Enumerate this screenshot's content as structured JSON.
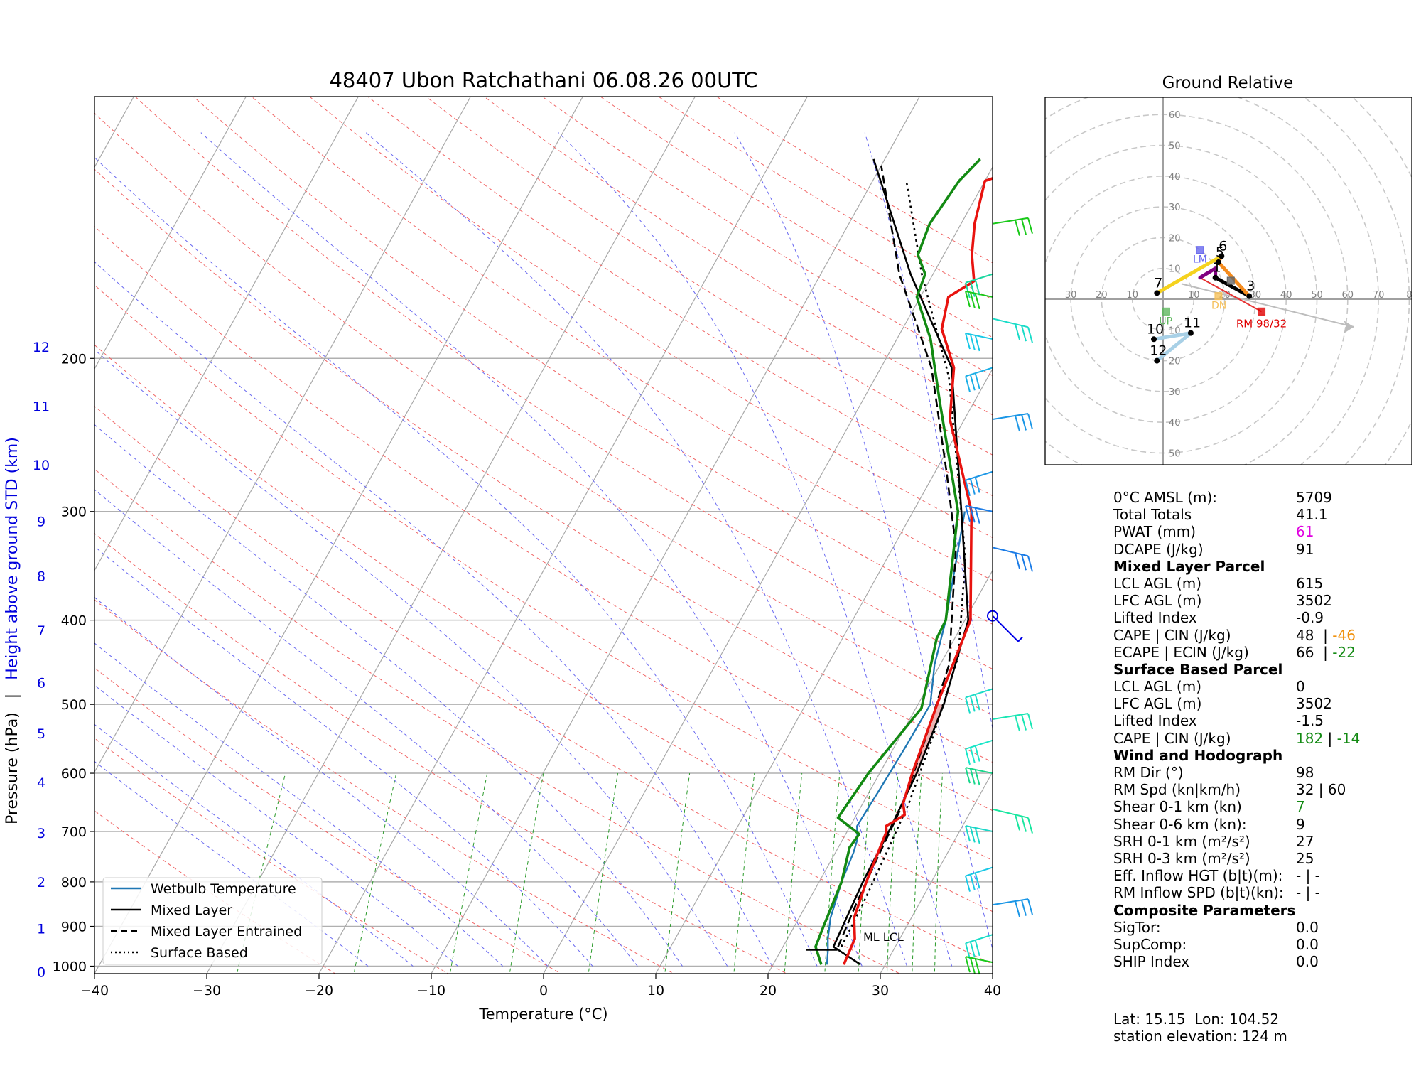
{
  "chart_data": [
    {
      "type": "line",
      "title": "48407 Ubon Ratchathani 06.08.26 00UTC",
      "xlabel": "Temperature (°C)",
      "ylabel": "Pressure (hPa)",
      "y2label": "Height above ground STD (km)",
      "ylabel_sep": "|",
      "xlim": [
        -40,
        40
      ],
      "ylim": [
        1020,
        100
      ],
      "y_scale": "log",
      "skew": "skew-T",
      "x_ticks": [
        "−40",
        "−30",
        "−20",
        "−10",
        "0",
        "10",
        "20",
        "30",
        "40"
      ],
      "y_ticks": [
        {
          "p": 1000,
          "label": "1000"
        },
        {
          "p": 900,
          "label": "900"
        },
        {
          "p": 800,
          "label": "800"
        },
        {
          "p": 700,
          "label": "700"
        },
        {
          "p": 600,
          "label": "600"
        },
        {
          "p": 500,
          "label": "500"
        },
        {
          "p": 400,
          "label": "400"
        },
        {
          "p": 300,
          "label": "300"
        },
        {
          "p": 200,
          "label": "200"
        }
      ],
      "height_ticks": [
        {
          "label": "0",
          "p": 1015
        },
        {
          "label": "1",
          "p": 905
        },
        {
          "label": "2",
          "p": 800
        },
        {
          "label": "3",
          "p": 703
        },
        {
          "label": "4",
          "p": 615
        },
        {
          "label": "5",
          "p": 540
        },
        {
          "label": "6",
          "p": 472
        },
        {
          "label": "7",
          "p": 411
        },
        {
          "label": "8",
          "p": 356
        },
        {
          "label": "9",
          "p": 308
        },
        {
          "label": "10",
          "p": 265
        },
        {
          "label": "11",
          "p": 227
        },
        {
          "label": "12",
          "p": 194
        }
      ],
      "series": [
        {
          "name": "Wetbulb Temperature",
          "color": "#1f77b4",
          "points": [
            [
              24.8,
              996
            ],
            [
              24.2,
              960
            ],
            [
              23.6,
              930
            ],
            [
              22.8,
              880
            ],
            [
              22,
              800
            ],
            [
              21.6,
              740
            ],
            [
              21.3,
              715
            ],
            [
              20.6,
              690
            ],
            [
              20.8,
              630
            ],
            [
              21,
              560
            ],
            [
              21.1,
              500
            ],
            [
              19.5,
              450
            ],
            [
              18.3,
              400
            ],
            [
              14.6,
              300
            ]
          ]
        },
        {
          "name": "Mixed Layer",
          "color": "#000000",
          "dash": "",
          "points": [
            [
              27.8,
              996
            ],
            [
              24.5,
              950
            ],
            [
              24.3,
              900
            ],
            [
              23.9,
              800
            ],
            [
              23.7,
              700
            ],
            [
              23.3,
              600
            ],
            [
              22.3,
              500
            ],
            [
              20.3,
              400
            ],
            [
              14.3,
              300
            ],
            [
              6.3,
              205
            ],
            [
              -2,
              160
            ],
            [
              -11,
              118
            ]
          ]
        },
        {
          "name": "Mixed Layer Entrained",
          "color": "#000000",
          "dash": "12,6",
          "points": [
            [
              24.9,
              950
            ],
            [
              24.4,
              850
            ],
            [
              24,
              750
            ],
            [
              23.6,
              650
            ],
            [
              22.4,
              550
            ],
            [
              20.8,
              450
            ],
            [
              15.6,
              330
            ],
            [
              11,
              270
            ],
            [
              4.5,
              205
            ],
            [
              -3,
              160
            ],
            [
              -10,
              120
            ]
          ]
        },
        {
          "name": "Surface Based",
          "color": "#000000",
          "dash": "3,5",
          "points": [
            [
              25.2,
              950
            ],
            [
              25,
              850
            ],
            [
              24.6,
              750
            ],
            [
              24.1,
              650
            ],
            [
              23,
              550
            ],
            [
              21.2,
              440
            ],
            [
              17,
              340
            ],
            [
              12,
              270
            ],
            [
              6.5,
              210
            ],
            [
              -1,
              160
            ],
            [
              -7,
              125
            ]
          ]
        }
      ],
      "profile_temperature": {
        "color": "#e8130f",
        "points": [
          [
            26.3,
            996
          ],
          [
            26,
            930
          ],
          [
            24.9,
            880
          ],
          [
            24.2,
            800
          ],
          [
            23.5,
            700
          ],
          [
            23.2,
            690
          ],
          [
            24.3,
            670
          ],
          [
            23.6,
            650
          ],
          [
            22.9,
            600
          ],
          [
            21.7,
            500
          ],
          [
            20.5,
            400
          ],
          [
            15.2,
            300
          ],
          [
            8.7,
            235
          ],
          [
            6.5,
            205
          ],
          [
            3.5,
            185
          ],
          [
            2.5,
            170
          ],
          [
            4,
            163
          ],
          [
            2.5,
            152
          ],
          [
            1.2,
            140
          ],
          [
            0,
            125
          ],
          [
            3.2,
            120
          ]
        ]
      },
      "profile_dewpoint": {
        "color": "#138a13",
        "points": [
          [
            24.3,
            996
          ],
          [
            22.9,
            950
          ],
          [
            22.6,
            900
          ],
          [
            22,
            800
          ],
          [
            21,
            730
          ],
          [
            21.2,
            705
          ],
          [
            18.5,
            675
          ],
          [
            19,
            600
          ],
          [
            20.5,
            505
          ],
          [
            18.4,
            420
          ],
          [
            18.3,
            400
          ],
          [
            14,
            300
          ],
          [
            7,
            225
          ],
          [
            3,
            190
          ],
          [
            -0.3,
            170
          ],
          [
            -0.7,
            160
          ],
          [
            -2.3,
            152
          ],
          [
            -2.8,
            140
          ],
          [
            -2.3,
            125
          ],
          [
            -1.5,
            118
          ]
        ]
      },
      "cape_shading_color": "#e8a5a5",
      "wind_barbs_side": "right",
      "lcl_label": "ML LCL",
      "legend_position": "bottom-left",
      "grid": true
    },
    {
      "type": "scatter",
      "title": "Ground Relative",
      "radial_ticks": [
        "60",
        "50",
        "40",
        "30",
        "20",
        "10",
        "10",
        "20",
        "30",
        "40",
        "50"
      ],
      "horizontal_ticks": [
        "30",
        "20",
        "10",
        "10",
        "20",
        "30",
        "40",
        "50",
        "60",
        "70",
        "8"
      ],
      "points": [
        {
          "label": "1",
          "x": 17,
          "y": 7
        },
        {
          "label": "3",
          "x": 28,
          "y": 1
        },
        {
          "label": "5",
          "x": 18,
          "y": 12
        },
        {
          "label": "6",
          "x": 19,
          "y": 14
        },
        {
          "label": "7",
          "x": -2,
          "y": 2
        },
        {
          "label": "10",
          "x": -3,
          "y": -13
        },
        {
          "label": "11",
          "x": 9,
          "y": -11
        },
        {
          "label": "12",
          "x": -2,
          "y": -20
        }
      ],
      "markers": [
        {
          "label": "LM",
          "x": 12,
          "y": 16,
          "color": "#6666ee"
        },
        {
          "label": "DN",
          "x": 18,
          "y": 1,
          "color": "#f5c05a"
        },
        {
          "label": "UP",
          "x": 1,
          "y": -4,
          "color": "#5fb85f"
        },
        {
          "label": "",
          "x": 22,
          "y": 6,
          "color": "#666666"
        },
        {
          "label": "RM 98/32",
          "x": 32,
          "y": -4,
          "color": "#e00000"
        }
      ]
    }
  ],
  "params": {
    "rows": [
      {
        "label": "0°C AMSL (m):",
        "value": "5709",
        "color": "#000000"
      },
      {
        "label": "Total Totals",
        "value": "41.1",
        "color": "#000000"
      },
      {
        "label": "PWAT (mm)",
        "value": "61",
        "color": "#e000e0"
      },
      {
        "label": "DCAPE (J/kg)",
        "value": "91",
        "color": "#000000"
      }
    ],
    "ml_header": "Mixed Layer Parcel",
    "ml": {
      "lcl_label": "LCL AGL (m)",
      "lcl": "615",
      "lfc_label": "LFC AGL (m)",
      "lfc": "3502",
      "li_label": "Lifted Index",
      "li": "-0.9",
      "cape_label": "CAPE | CIN (J/kg)",
      "cape": "48",
      "sep": "|",
      "cin": "-46",
      "ecape_label": "ECAPE | ECIN (J/kg)",
      "ecape": "66",
      "ecin": "-22"
    },
    "sb_header": "Surface Based Parcel",
    "sb": {
      "lcl_label": "LCL AGL (m)",
      "lcl": "0",
      "lfc_label": "LFC AGL (m)",
      "lfc": "3502",
      "li_label": "Lifted Index",
      "li": "-1.5",
      "cape_label": "CAPE | CIN (J/kg)",
      "cape": "182",
      "sep": "|",
      "cin": "-14"
    },
    "wind_header": "Wind and Hodograph",
    "wind_rows": [
      {
        "label": "RM Dir (°)",
        "value": "98",
        "color": "#000000"
      },
      {
        "label": "RM Spd (kn|km/h)",
        "value": "32 | 60",
        "color": "#000000"
      },
      {
        "label": "Shear 0-1 km (kn)",
        "value": "7",
        "color": "#138a13"
      },
      {
        "label": "Shear 0-6 km (kn):",
        "value": "9",
        "color": "#000000"
      },
      {
        "label": "SRH 0-1 km (m²/s²)",
        "value": "27",
        "color": "#000000"
      },
      {
        "label": "SRH 0-3 km (m²/s²)",
        "value": "25",
        "color": "#000000"
      },
      {
        "label": "Eff. Inflow HGT (b|t)(m):",
        "value": "- | -",
        "color": "#000000"
      },
      {
        "label": "RM Inflow SPD (b|t)(kn):",
        "value": "- | -",
        "color": "#000000"
      }
    ],
    "comp_header": "Composite Parameters",
    "comp_rows": [
      {
        "label": "SigTor:",
        "value": "0.0",
        "color": "#000000"
      },
      {
        "label": "SupComp:",
        "value": "0.0",
        "color": "#000000"
      },
      {
        "label": "SHIP Index",
        "value": "0.0",
        "color": "#000000"
      }
    ]
  },
  "footer": {
    "latlon": "Lat: 15.15  Lon: 104.52",
    "elevation": "station elevation: 124 m"
  }
}
